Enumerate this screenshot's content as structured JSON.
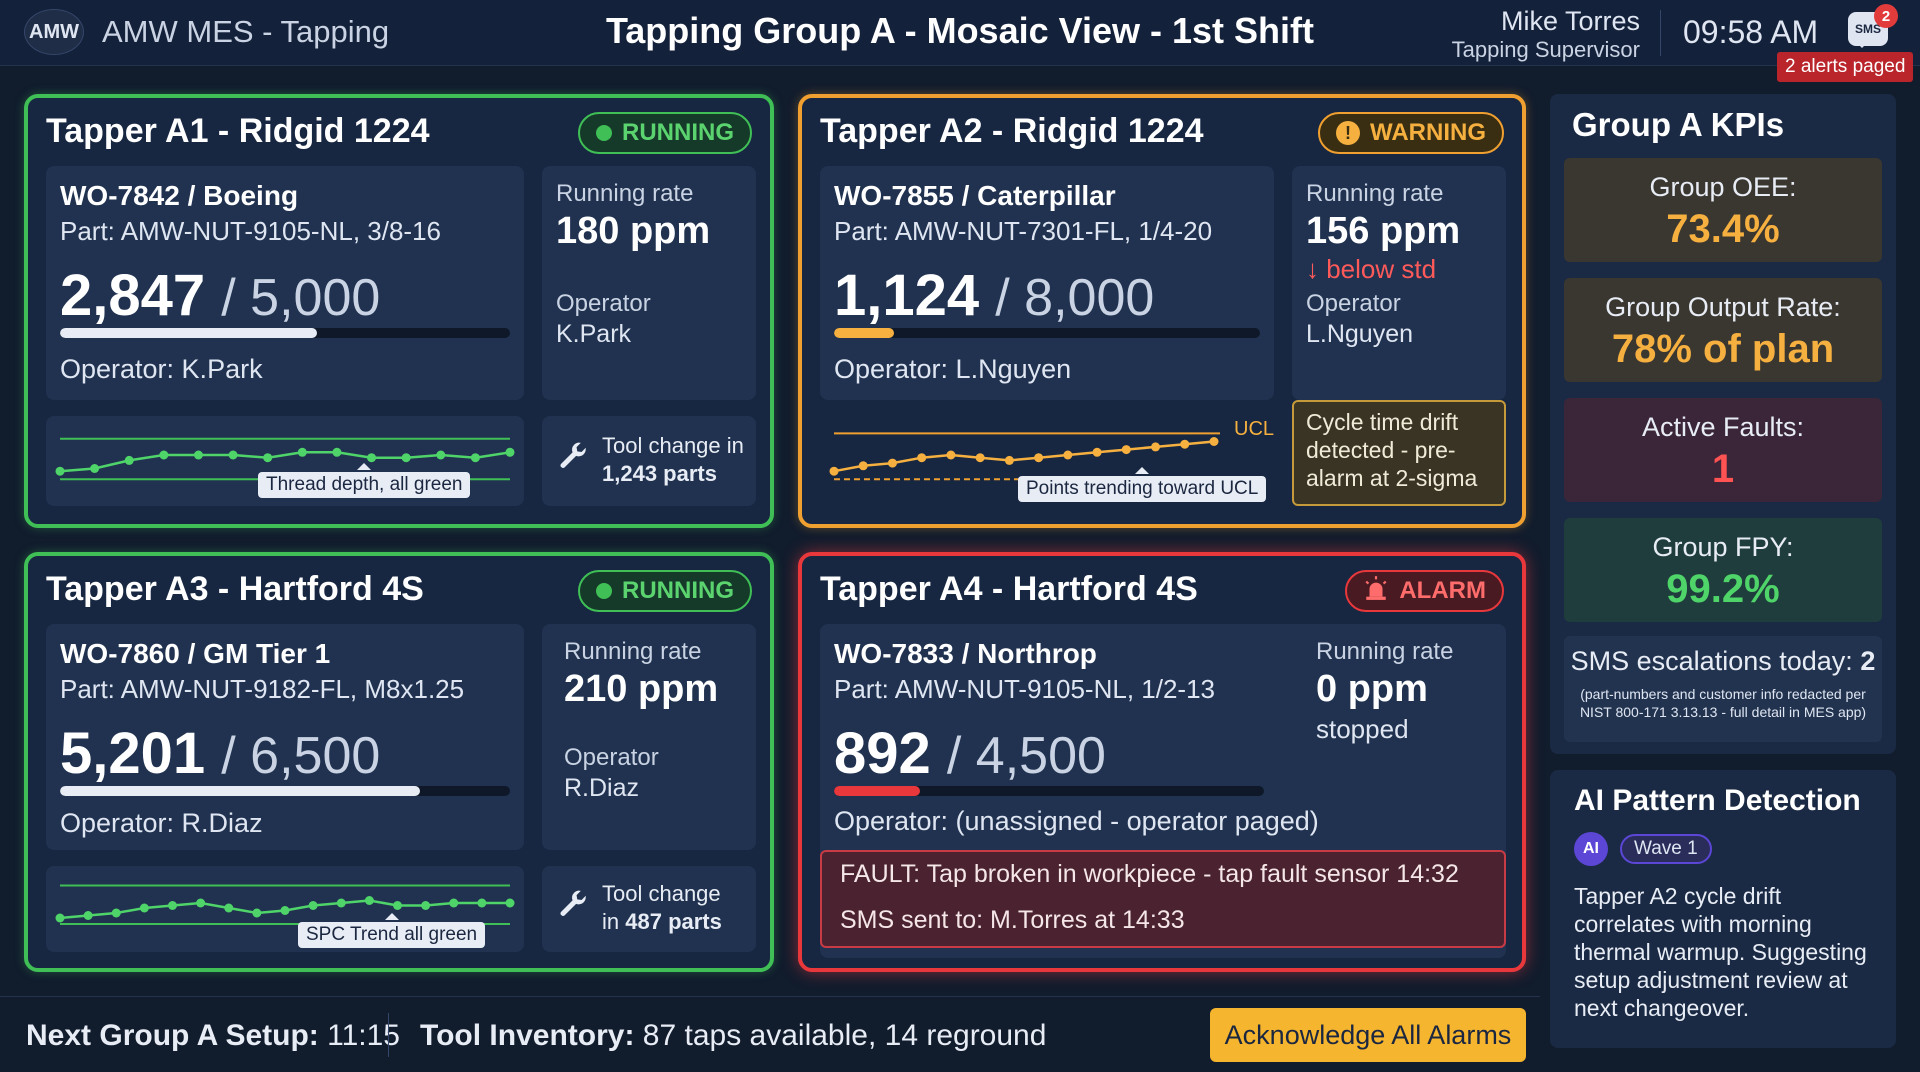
{
  "header": {
    "logo": "AMW",
    "app_title": "AMW MES - Tapping",
    "view_title": "Tapping Group A - Mosaic View - 1st Shift",
    "user_name": "Mike Torres",
    "user_role": "Tapping Supervisor",
    "time": "09:58 AM",
    "sms_label": "SMS",
    "sms_count": "2",
    "alerts_paged": "2 alerts paged"
  },
  "tappers": [
    {
      "title": "Tapper A1 - Ridgid 1224",
      "status": "RUNNING",
      "wo": "WO-7842 / Boeing",
      "part": "Part: AMW-NUT-9105-NL, 3/8-16",
      "done": "2,847",
      "total": "/ 5,000",
      "progress": 0.57,
      "operator_line": "Operator: K.Park",
      "rate_label": "Running rate",
      "rate": "180 ppm",
      "op_label": "Operator",
      "op_name": "K.Park",
      "chart_note": "Thread depth, all green",
      "tool_prefix": "Tool change in",
      "tool_parts": "1,243 parts",
      "color": "#3fbf55"
    },
    {
      "title": "Tapper A2 - Ridgid 1224",
      "status": "WARNING",
      "wo": "WO-7855 / Caterpillar",
      "part": "Part: AMW-NUT-7301-FL, 1/4-20",
      "done": "1,124",
      "total": "/ 8,000",
      "progress": 0.14,
      "operator_line": "Operator: L.Nguyen",
      "rate_label": "Running rate",
      "rate": "156 ppm",
      "rate_note": "↓ below std",
      "op_label": "Operator",
      "op_name": "L.Nguyen",
      "ucl": "UCL",
      "chart_note": "Points trending toward UCL",
      "drift_note": "Cycle time drift detected - pre-alarm at 2-sigma",
      "color": "#f0a030"
    },
    {
      "title": "Tapper A3 - Hartford 4S",
      "status": "RUNNING",
      "wo": "WO-7860 / GM Tier 1",
      "part": "Part: AMW-NUT-9182-FL, M8x1.25",
      "done": "5,201",
      "total": "/ 6,500",
      "progress": 0.8,
      "operator_line": "Operator: R.Diaz",
      "rate_label": "Running rate",
      "rate": "210 ppm",
      "op_label": "Operator",
      "op_name": "R.Diaz",
      "chart_note": "SPC Trend all green",
      "tool_prefix": "Tool change",
      "tool_parts_prefix": "in ",
      "tool_parts": "487 parts",
      "color": "#3fbf55"
    },
    {
      "title": "Tapper A4 - Hartford 4S",
      "status": "ALARM",
      "wo": "WO-7833 / Northrop",
      "part": "Part: AMW-NUT-9105-NL, 1/2-13",
      "done": "892",
      "total": "/ 4,500",
      "progress": 0.2,
      "operator_line": "Operator: (unassigned - operator paged)",
      "rate_label": "Running rate",
      "rate": "0 ppm",
      "rate_note": "stopped",
      "fault": "FAULT: Tap broken in workpiece - tap fault sensor 14:32",
      "sms_sent": "SMS sent to: M.Torres at 14:33",
      "color": "#e8383c"
    }
  ],
  "kpis": {
    "title": "Group A KPIs",
    "items": [
      {
        "label": "Group OEE:",
        "value": "73.4%",
        "color": "#f5b040",
        "bg": "#3a3630"
      },
      {
        "label": "Group Output Rate:",
        "value": "78% of plan",
        "color": "#f5b040",
        "bg": "#3a3630"
      },
      {
        "label": "Active Faults:",
        "value": "1",
        "color": "#ff5252",
        "bg": "#3a2638"
      },
      {
        "label": "Group FPY:",
        "value": "99.2%",
        "color": "#4fd46a",
        "bg": "#1f3d3c"
      }
    ],
    "sms_label": "SMS escalations today:",
    "sms_value": "2",
    "redact_note": "(part-numbers and customer info redacted per NIST 800-171 3.13.13 - full detail in MES app)"
  },
  "ai": {
    "title": "AI Pattern Detection",
    "badge": "AI",
    "wave": "Wave 1",
    "text": "Tapper A2 cycle drift correlates with morning thermal warmup. Suggesting setup adjustment review at next changeover."
  },
  "footer": {
    "setup_label": "Next Group A Setup:",
    "setup_time": "11:15",
    "inv_label": "Tool Inventory:",
    "inv_value": "87 taps available, 14 reground",
    "ack_button": "Acknowledge All Alarms"
  },
  "charts": {
    "a1": [
      2,
      2.5,
      4,
      5,
      5,
      5,
      4.5,
      5.5,
      5.5,
      4.5,
      4.5,
      5,
      4.5,
      5.5
    ],
    "a2": [
      2,
      3,
      3.5,
      4.5,
      5,
      4.5,
      4,
      4.5,
      5,
      5.5,
      6,
      6.5,
      7,
      7.5
    ],
    "a3": [
      2,
      2.5,
      3,
      4,
      4.5,
      5,
      4,
      3,
      3.5,
      4.5,
      5,
      5.5,
      4.5,
      4.5,
      5,
      5,
      5
    ]
  }
}
